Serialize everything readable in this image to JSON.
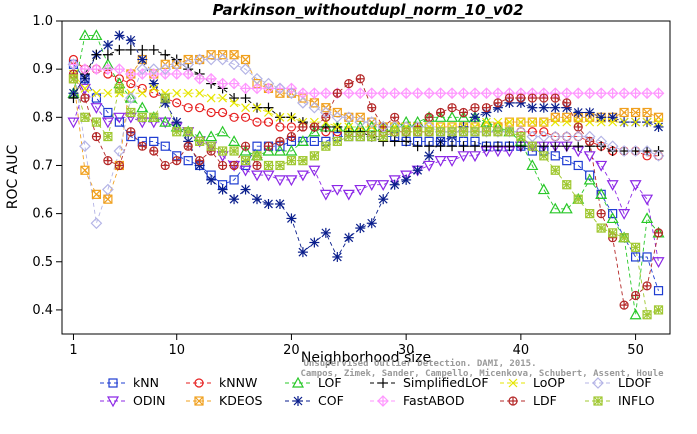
{
  "chart_data": {
    "type": "line",
    "title": "Parkinson_withoutdupl_norm_10_v02",
    "xlabel": "Neighborhood size",
    "ylabel": "ROC AUC",
    "xlim": [
      0,
      53
    ],
    "ylim": [
      0.35,
      1.0
    ],
    "xticks": [
      1,
      10,
      20,
      30,
      40,
      50
    ],
    "yticks": [
      0.4,
      0.5,
      0.6,
      0.7,
      0.8,
      0.9,
      1.0
    ],
    "x": [
      1,
      2,
      3,
      4,
      5,
      6,
      7,
      8,
      9,
      10,
      11,
      12,
      13,
      14,
      15,
      16,
      17,
      18,
      19,
      20,
      21,
      22,
      23,
      24,
      25,
      26,
      27,
      28,
      29,
      30,
      31,
      32,
      33,
      34,
      35,
      36,
      37,
      38,
      39,
      40,
      41,
      42,
      43,
      44,
      45,
      46,
      47,
      48,
      49,
      50,
      51,
      52
    ],
    "grid": false,
    "legend_position": "bottom",
    "series": [
      {
        "name": "kNN",
        "color": "#1e3cd2",
        "marker": "square",
        "values": [
          0.91,
          0.88,
          0.84,
          0.81,
          0.79,
          0.76,
          0.75,
          0.75,
          0.74,
          0.72,
          0.71,
          0.7,
          0.68,
          0.66,
          0.67,
          0.7,
          0.74,
          0.74,
          0.74,
          0.75,
          0.75,
          0.75,
          0.75,
          0.76,
          0.76,
          0.76,
          0.76,
          0.76,
          0.76,
          0.75,
          0.75,
          0.75,
          0.75,
          0.75,
          0.75,
          0.75,
          0.74,
          0.74,
          0.74,
          0.74,
          0.73,
          0.73,
          0.72,
          0.71,
          0.7,
          0.68,
          0.64,
          0.6,
          0.55,
          0.51,
          0.51,
          0.44
        ]
      },
      {
        "name": "ODIN",
        "color": "#8c28e6",
        "marker": "triangle-down",
        "values": [
          0.79,
          0.86,
          0.82,
          0.79,
          0.8,
          0.8,
          0.79,
          0.79,
          0.79,
          0.78,
          0.77,
          0.75,
          0.74,
          0.72,
          0.7,
          0.69,
          0.68,
          0.68,
          0.67,
          0.67,
          0.68,
          0.69,
          0.64,
          0.65,
          0.64,
          0.65,
          0.66,
          0.66,
          0.67,
          0.68,
          0.69,
          0.7,
          0.71,
          0.71,
          0.72,
          0.72,
          0.73,
          0.73,
          0.73,
          0.74,
          0.74,
          0.74,
          0.74,
          0.74,
          0.73,
          0.72,
          0.7,
          0.66,
          0.6,
          0.66,
          0.63,
          0.5
        ]
      },
      {
        "name": "kNNW",
        "color": "#e61e1e",
        "marker": "circle",
        "values": [
          0.92,
          0.9,
          0.9,
          0.89,
          0.88,
          0.87,
          0.86,
          0.85,
          0.84,
          0.83,
          0.82,
          0.82,
          0.81,
          0.81,
          0.8,
          0.8,
          0.79,
          0.79,
          0.78,
          0.78,
          0.78,
          0.78,
          0.77,
          0.77,
          0.77,
          0.77,
          0.77,
          0.77,
          0.77,
          0.77,
          0.77,
          0.77,
          0.77,
          0.77,
          0.77,
          0.77,
          0.77,
          0.77,
          0.77,
          0.77,
          0.77,
          0.77,
          0.76,
          0.76,
          0.76,
          0.75,
          0.74,
          0.73,
          0.73,
          0.73,
          0.72,
          0.72
        ]
      },
      {
        "name": "KDEOS",
        "color": "#f0a01e",
        "marker": "square-x",
        "values": [
          0.88,
          0.69,
          0.64,
          0.63,
          0.7,
          0.89,
          0.92,
          0.89,
          0.91,
          0.91,
          0.92,
          0.92,
          0.93,
          0.93,
          0.93,
          0.92,
          0.87,
          0.86,
          0.85,
          0.85,
          0.84,
          0.83,
          0.82,
          0.81,
          0.8,
          0.8,
          0.79,
          0.78,
          0.78,
          0.78,
          0.78,
          0.78,
          0.78,
          0.78,
          0.78,
          0.78,
          0.78,
          0.78,
          0.79,
          0.79,
          0.79,
          0.79,
          0.8,
          0.8,
          0.8,
          0.8,
          0.8,
          0.8,
          0.81,
          0.81,
          0.81,
          0.8
        ]
      },
      {
        "name": "LOF",
        "color": "#28c828",
        "marker": "triangle",
        "values": [
          0.85,
          0.97,
          0.97,
          0.91,
          0.87,
          0.84,
          0.82,
          0.8,
          0.79,
          0.78,
          0.77,
          0.76,
          0.76,
          0.77,
          0.75,
          0.73,
          0.72,
          0.73,
          0.73,
          0.73,
          0.75,
          0.77,
          0.78,
          0.78,
          0.78,
          0.78,
          0.78,
          0.78,
          0.78,
          0.79,
          0.79,
          0.8,
          0.8,
          0.8,
          0.8,
          0.8,
          0.79,
          0.78,
          0.77,
          0.75,
          0.7,
          0.65,
          0.61,
          0.61,
          0.63,
          0.67,
          0.64,
          0.59,
          0.55,
          0.39,
          0.59,
          0.56
        ]
      },
      {
        "name": "COF",
        "color": "#0a1e8c",
        "marker": "asterisk",
        "values": [
          0.85,
          0.88,
          0.93,
          0.95,
          0.97,
          0.96,
          0.92,
          0.87,
          0.83,
          0.79,
          0.75,
          0.7,
          0.67,
          0.65,
          0.63,
          0.65,
          0.63,
          0.62,
          0.62,
          0.59,
          0.52,
          0.54,
          0.56,
          0.51,
          0.55,
          0.57,
          0.58,
          0.63,
          0.66,
          0.67,
          0.69,
          0.72,
          0.75,
          0.76,
          0.78,
          0.8,
          0.81,
          0.82,
          0.83,
          0.83,
          0.82,
          0.82,
          0.82,
          0.82,
          0.81,
          0.81,
          0.8,
          0.8,
          0.79,
          0.79,
          0.79,
          0.78
        ]
      },
      {
        "name": "SimplifiedLOF",
        "color": "#000000",
        "marker": "plus",
        "values": [
          0.84,
          0.89,
          0.93,
          0.93,
          0.94,
          0.94,
          0.94,
          0.94,
          0.93,
          0.92,
          0.9,
          0.89,
          0.87,
          0.86,
          0.84,
          0.84,
          0.82,
          0.82,
          0.8,
          0.8,
          0.79,
          0.78,
          0.78,
          0.78,
          0.77,
          0.77,
          0.76,
          0.75,
          0.75,
          0.75,
          0.74,
          0.74,
          0.74,
          0.74,
          0.74,
          0.74,
          0.74,
          0.74,
          0.74,
          0.74,
          0.74,
          0.74,
          0.74,
          0.74,
          0.74,
          0.74,
          0.74,
          0.73,
          0.73,
          0.73,
          0.73,
          0.73
        ]
      },
      {
        "name": "FastABOD",
        "color": "#ff96ff",
        "marker": "diamond-plus",
        "values": [
          0.91,
          0.9,
          0.9,
          0.9,
          0.9,
          0.89,
          0.89,
          0.89,
          0.89,
          0.89,
          0.89,
          0.88,
          0.88,
          0.87,
          0.87,
          0.86,
          0.86,
          0.86,
          0.86,
          0.86,
          0.85,
          0.85,
          0.85,
          0.85,
          0.85,
          0.85,
          0.85,
          0.85,
          0.85,
          0.85,
          0.85,
          0.85,
          0.85,
          0.85,
          0.85,
          0.85,
          0.85,
          0.85,
          0.85,
          0.85,
          0.85,
          0.85,
          0.85,
          0.85,
          0.85,
          0.85,
          0.85,
          0.85,
          0.85,
          0.85,
          0.85,
          0.85
        ]
      },
      {
        "name": "LoOP",
        "color": "#e6e600",
        "marker": "x",
        "values": [
          0.89,
          0.86,
          0.85,
          0.85,
          0.85,
          0.85,
          0.85,
          0.86,
          0.85,
          0.85,
          0.85,
          0.85,
          0.84,
          0.84,
          0.83,
          0.82,
          0.82,
          0.81,
          0.8,
          0.8,
          0.79,
          0.79,
          0.79,
          0.78,
          0.78,
          0.78,
          0.78,
          0.78,
          0.78,
          0.78,
          0.78,
          0.78,
          0.78,
          0.78,
          0.78,
          0.78,
          0.79,
          0.79,
          0.79,
          0.79,
          0.79,
          0.79,
          0.79,
          0.79,
          0.79,
          0.79,
          0.79,
          0.79,
          0.79,
          0.79,
          0.79,
          0.79
        ]
      },
      {
        "name": "LDF",
        "color": "#b42828",
        "marker": "circle-plus",
        "values": [
          0.89,
          0.84,
          0.76,
          0.71,
          0.7,
          0.77,
          0.74,
          0.73,
          0.7,
          0.71,
          0.74,
          0.71,
          0.73,
          0.7,
          0.7,
          0.74,
          0.7,
          0.74,
          0.75,
          0.76,
          0.78,
          0.78,
          0.8,
          0.85,
          0.87,
          0.88,
          0.82,
          0.78,
          0.8,
          0.77,
          0.78,
          0.8,
          0.81,
          0.82,
          0.81,
          0.82,
          0.82,
          0.83,
          0.84,
          0.84,
          0.84,
          0.84,
          0.84,
          0.83,
          0.78,
          0.75,
          0.6,
          0.55,
          0.41,
          0.43,
          0.45,
          0.56
        ]
      },
      {
        "name": "LDOF",
        "color": "#b4b4e6",
        "marker": "diamond",
        "values": [
          0.91,
          0.74,
          0.58,
          0.65,
          0.73,
          0.84,
          0.9,
          0.9,
          0.9,
          0.91,
          0.91,
          0.92,
          0.92,
          0.92,
          0.91,
          0.9,
          0.88,
          0.87,
          0.86,
          0.85,
          0.83,
          0.82,
          0.81,
          0.8,
          0.8,
          0.79,
          0.79,
          0.78,
          0.78,
          0.78,
          0.78,
          0.78,
          0.77,
          0.77,
          0.77,
          0.77,
          0.77,
          0.77,
          0.77,
          0.77,
          0.76,
          0.76,
          0.76,
          0.76,
          0.76,
          0.76,
          0.75,
          0.74,
          0.73,
          0.73,
          0.73,
          0.72
        ]
      },
      {
        "name": "INFLO",
        "color": "#a0c832",
        "marker": "square-asterisk",
        "values": [
          0.88,
          0.8,
          0.79,
          0.76,
          0.86,
          0.81,
          0.8,
          0.8,
          0.84,
          0.77,
          0.77,
          0.75,
          0.74,
          0.73,
          0.73,
          0.71,
          0.72,
          0.7,
          0.7,
          0.71,
          0.71,
          0.72,
          0.74,
          0.75,
          0.76,
          0.76,
          0.76,
          0.76,
          0.77,
          0.77,
          0.77,
          0.77,
          0.77,
          0.77,
          0.77,
          0.77,
          0.77,
          0.77,
          0.77,
          0.76,
          0.74,
          0.72,
          0.69,
          0.66,
          0.63,
          0.6,
          0.57,
          0.56,
          0.55,
          0.53,
          0.39,
          0.4
        ]
      }
    ],
    "legend_rows": [
      [
        "kNN",
        "kNNW",
        "LOF",
        "SimplifiedLOF",
        "LoOP",
        "LDOF"
      ],
      [
        "ODIN",
        "KDEOS",
        "COF",
        "FastABOD",
        "LDF",
        "INFLO"
      ]
    ]
  },
  "watermark": {
    "line1": "Unsupervised Outlier Detection. DAMI, 2015.",
    "line2": "Campos, Zimek, Sander, Campello, Micenkova, Schubert, Assent, Houle"
  }
}
